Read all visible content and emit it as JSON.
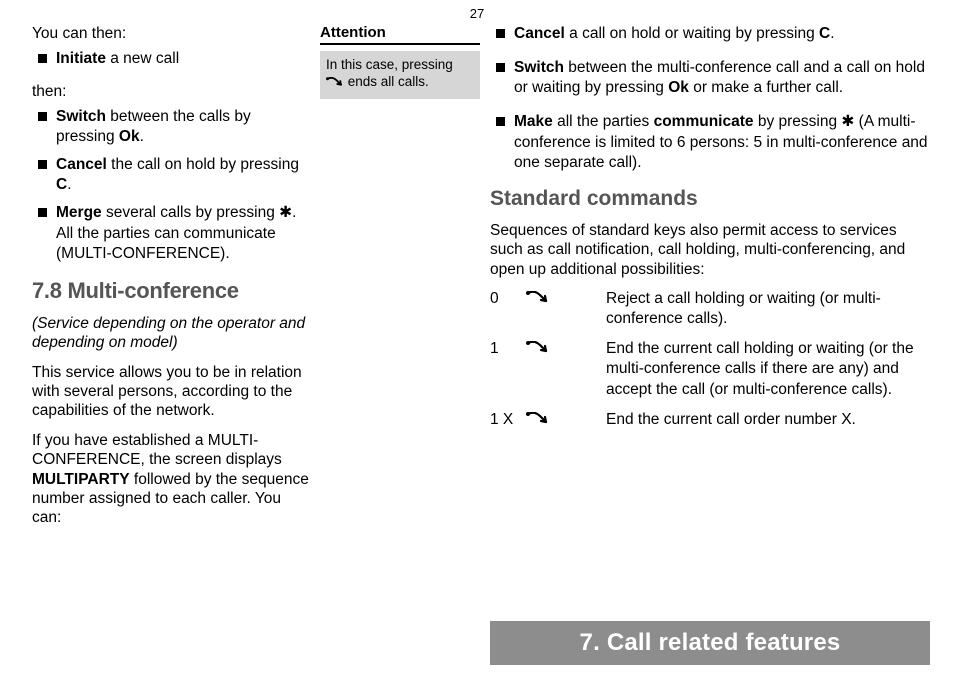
{
  "page_number": "27",
  "col1": {
    "intro1": "You can then:",
    "bullets1": [
      {
        "html": "<b>Initiate</b> a new call"
      }
    ],
    "intro2": "then:",
    "bullets2": [
      {
        "html": "<b>Switch</b> between the calls by pressing <b>Ok</b>."
      },
      {
        "html": "<b>Cancel</b> the call on hold by pressing <b>C</b>."
      },
      {
        "html": "<b>Merge</b> several calls by pressing ✱.  All the parties can communicate (MULTI-CONFERENCE)."
      }
    ],
    "heading": "7.8 Multi-conference",
    "italic_note": "(Service depending on the operator and depending on model)",
    "p1": "This service allows you to be in relation with several persons, according to the capabilities of the network.",
    "p2_html": "If you have established a MULTI-CONFERENCE, the screen displays <b>MULTIPARTY</b> followed by the sequence number assigned to each caller. You can:"
  },
  "col2": {
    "attention_label": "Attention",
    "attention_text_before": "In this case, pressing ",
    "attention_text_after": " ends all calls."
  },
  "col3": {
    "bullets": [
      {
        "html": "<b>Cancel</b> a call on hold or waiting by pressing <b>C</b>."
      },
      {
        "html": "<b>Switch</b> between the multi-conference call and a call on hold or waiting by pressing <b>Ok</b> or make a further call."
      },
      {
        "html": "<b>Make</b> all the parties <b>communicate</b> by pressing ✱ (A multi-conference is limited to 6 persons: 5 in multi-conference and one separate call)."
      }
    ],
    "heading": "Standard commands",
    "p1": "Sequences of standard keys also permit access to services such as call notification, call holding, multi-conferencing, and open up additional possibilities:",
    "commands": [
      {
        "key": "0",
        "desc": "Reject a call holding or waiting (or multi-conference calls)."
      },
      {
        "key": "1",
        "desc": "End the current call holding or waiting (or the multi-conference calls if there are any) and accept the call (or multi-conference calls)."
      },
      {
        "key": "1 X",
        "desc": "End the current call order number X."
      }
    ]
  },
  "chapter_banner": "7. Call related features",
  "icons": {
    "phone_svg": "<svg class='call-arrow' width='24' height='14' viewBox='0 0 24 14'><path d='M2 2 C 6 0, 10 0, 14 4 L 20 10' stroke='#000' stroke-width='2.2' fill='none' stroke-linecap='round'/><path d='M20 10 L15 9 M20 10 L19 5' stroke='#000' stroke-width='2.2' fill='none' stroke-linecap='round'/><circle cx='2' cy='2' r='2' fill='#000'/></svg>",
    "phone_small_svg": "<svg class='call-arrow' width='18' height='11' viewBox='0 0 24 14'><path d='M2 2 C 6 0, 10 0, 14 4 L 20 10' stroke='#000' stroke-width='2.4' fill='none' stroke-linecap='round'/><path d='M20 10 L15 9 M20 10 L19 5' stroke='#000' stroke-width='2.4' fill='none' stroke-linecap='round'/><circle cx='2' cy='2' r='2' fill='#000'/></svg>"
  }
}
